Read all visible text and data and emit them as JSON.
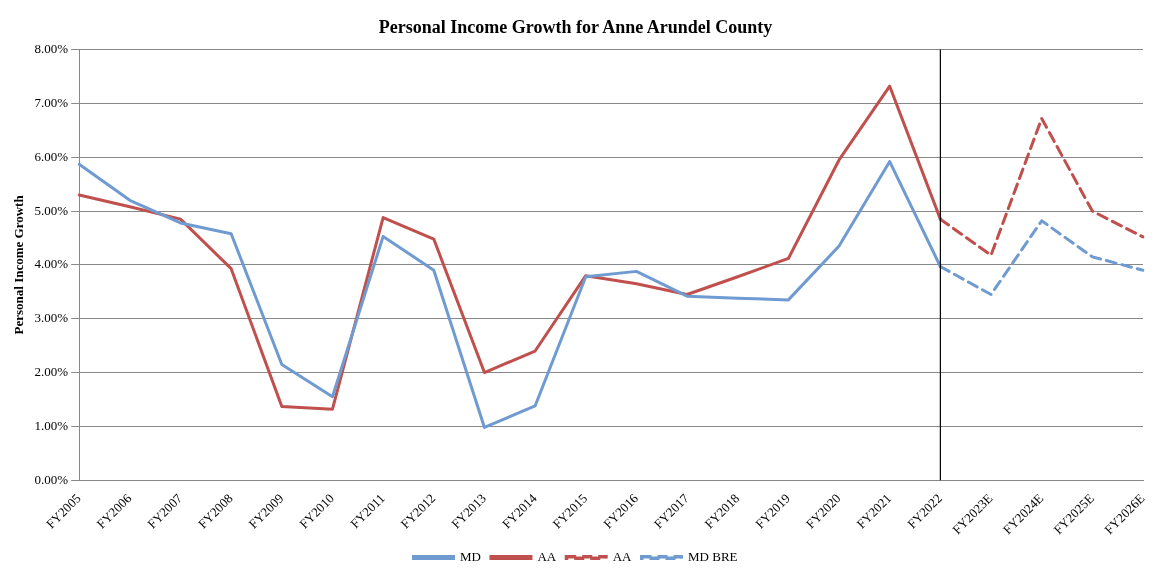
{
  "chart_data": {
    "type": "line",
    "title": "Personal Income Growth for Anne Arundel County",
    "ylabel": "Personal Income Growth",
    "categories": [
      "FY2005",
      "FY2006",
      "FY2007",
      "FY2008",
      "FY2009",
      "FY2010",
      "FY2011",
      "FY2012",
      "FY2013",
      "FY2014",
      "FY2015",
      "FY2016",
      "FY2017",
      "FY2018",
      "FY2019",
      "FY2020",
      "FY2021",
      "FY2022",
      "FY2023E",
      "FY2024E",
      "FY2025E",
      "FY2026E"
    ],
    "series": [
      {
        "name": "MD",
        "color": "#6f9bd1",
        "line_style": "solid",
        "values": [
          5.87,
          5.2,
          4.78,
          4.58,
          2.15,
          1.55,
          4.53,
          3.9,
          0.98,
          1.38,
          3.78,
          3.88,
          3.42,
          3.38,
          3.35,
          4.35,
          5.92,
          3.97,
          null,
          null,
          null,
          null
        ]
      },
      {
        "name": "AA",
        "color": "#c0504d",
        "line_style": "solid",
        "values": [
          5.3,
          5.08,
          4.85,
          3.93,
          1.37,
          1.32,
          4.88,
          4.48,
          2.0,
          2.4,
          3.8,
          3.65,
          3.45,
          3.78,
          4.12,
          5.95,
          7.32,
          4.85,
          null,
          null,
          null,
          null
        ]
      },
      {
        "name": "AA",
        "color": "#c0504d",
        "line_style": "dashed",
        "values": [
          null,
          null,
          null,
          null,
          null,
          null,
          null,
          null,
          null,
          null,
          null,
          null,
          null,
          null,
          null,
          null,
          null,
          4.85,
          4.18,
          6.72,
          5.0,
          4.52
        ]
      },
      {
        "name": "MD BRE",
        "color": "#6f9bd1",
        "line_style": "dashed",
        "values": [
          null,
          null,
          null,
          null,
          null,
          null,
          null,
          null,
          null,
          null,
          null,
          null,
          null,
          null,
          null,
          null,
          null,
          3.97,
          3.45,
          4.82,
          4.15,
          3.9
        ]
      }
    ],
    "ylim": [
      0,
      8
    ],
    "yticks": [
      {
        "value": 0,
        "label": "0.00%"
      },
      {
        "value": 1,
        "label": "1.00%"
      },
      {
        "value": 2,
        "label": "2.00%"
      },
      {
        "value": 3,
        "label": "3.00%"
      },
      {
        "value": 4,
        "label": "4.00%"
      },
      {
        "value": 5,
        "label": "5.00%"
      },
      {
        "value": 6,
        "label": "6.00%"
      },
      {
        "value": 7,
        "label": "7.00%"
      },
      {
        "value": 8,
        "label": "8.00%"
      }
    ],
    "ref_lines": [
      {
        "axis": "x",
        "value": "FY2022",
        "color": "#000000"
      }
    ],
    "grid": "y",
    "legend": "bottom",
    "marker": "none"
  }
}
